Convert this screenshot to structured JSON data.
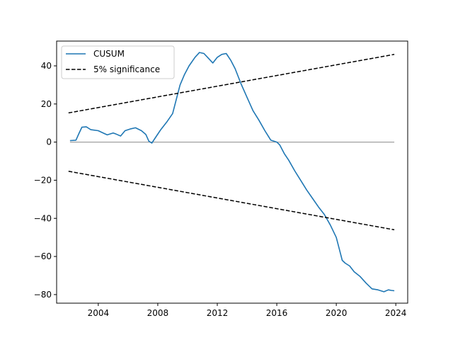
{
  "chart_data": {
    "type": "line",
    "title": "",
    "xlabel": "",
    "ylabel": "",
    "xlim": [
      2001.2,
      2024.8
    ],
    "ylim": [
      -84.5,
      53
    ],
    "xticks": [
      2004,
      2008,
      2012,
      2016,
      2020,
      2024
    ],
    "yticks": [
      -80,
      -60,
      -40,
      -20,
      0,
      20,
      40
    ],
    "grid": false,
    "legend_position": "top-left",
    "zero_line": {
      "y": 0,
      "color": "#a0a0a0"
    },
    "series": [
      {
        "name": "CUSUM",
        "style": "solid",
        "color": "#1f77b4",
        "points": [
          [
            2002.1,
            0.8
          ],
          [
            2002.5,
            1.0
          ],
          [
            2002.7,
            4.5
          ],
          [
            2002.9,
            7.8
          ],
          [
            2003.2,
            8.0
          ],
          [
            2003.5,
            6.5
          ],
          [
            2004.0,
            6.0
          ],
          [
            2004.4,
            4.5
          ],
          [
            2004.6,
            3.8
          ],
          [
            2005.0,
            4.8
          ],
          [
            2005.2,
            4.2
          ],
          [
            2005.5,
            3.2
          ],
          [
            2005.8,
            6.0
          ],
          [
            2006.2,
            7.0
          ],
          [
            2006.5,
            7.5
          ],
          [
            2006.9,
            6.0
          ],
          [
            2007.2,
            4.0
          ],
          [
            2007.4,
            0.5
          ],
          [
            2007.6,
            -0.5
          ],
          [
            2007.9,
            3.0
          ],
          [
            2008.2,
            6.5
          ],
          [
            2008.6,
            10.5
          ],
          [
            2009.0,
            15.0
          ],
          [
            2009.3,
            24.0
          ],
          [
            2009.5,
            30.0
          ],
          [
            2009.8,
            35.5
          ],
          [
            2010.1,
            40.0
          ],
          [
            2010.5,
            44.5
          ],
          [
            2010.8,
            47.0
          ],
          [
            2011.1,
            46.5
          ],
          [
            2011.4,
            44.0
          ],
          [
            2011.7,
            41.5
          ],
          [
            2012.0,
            44.5
          ],
          [
            2012.3,
            46.0
          ],
          [
            2012.6,
            46.5
          ],
          [
            2012.9,
            43.0
          ],
          [
            2013.2,
            38.5
          ],
          [
            2013.6,
            30.5
          ],
          [
            2014.0,
            23.5
          ],
          [
            2014.4,
            16.5
          ],
          [
            2014.8,
            11.5
          ],
          [
            2015.2,
            6.0
          ],
          [
            2015.6,
            1.0
          ],
          [
            2016.0,
            0.0
          ],
          [
            2016.2,
            -1.5
          ],
          [
            2016.5,
            -6.0
          ],
          [
            2016.8,
            -9.5
          ],
          [
            2017.2,
            -15.0
          ],
          [
            2017.6,
            -20.0
          ],
          [
            2018.0,
            -25.0
          ],
          [
            2018.4,
            -29.5
          ],
          [
            2018.8,
            -34.0
          ],
          [
            2019.2,
            -38.0
          ],
          [
            2019.6,
            -43.5
          ],
          [
            2020.0,
            -50.0
          ],
          [
            2020.2,
            -56.0
          ],
          [
            2020.4,
            -62.0
          ],
          [
            2020.6,
            -63.5
          ],
          [
            2020.9,
            -65.0
          ],
          [
            2021.2,
            -68.0
          ],
          [
            2021.6,
            -70.5
          ],
          [
            2022.0,
            -74.0
          ],
          [
            2022.4,
            -77.0
          ],
          [
            2022.8,
            -77.5
          ],
          [
            2023.2,
            -78.5
          ],
          [
            2023.5,
            -77.5
          ],
          [
            2023.7,
            -77.8
          ],
          [
            2023.9,
            -78.0
          ]
        ]
      },
      {
        "name": "5% significance",
        "style": "dashed",
        "color": "#000000",
        "points": [
          [
            2002.0,
            15.3
          ],
          [
            2023.9,
            46.0
          ]
        ]
      },
      {
        "name": "",
        "style": "dashed",
        "color": "#000000",
        "points": [
          [
            2002.0,
            -15.3
          ],
          [
            2023.9,
            -46.0
          ]
        ]
      }
    ]
  }
}
